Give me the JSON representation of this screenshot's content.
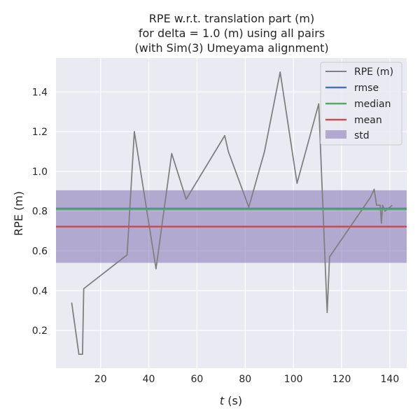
{
  "chart_data": {
    "type": "line",
    "title": [
      "RPE w.r.t. translation part (m)",
      "for delta = 1.0 (m) using all pairs",
      "(with Sim(3) Umeyama alignment)"
    ],
    "xlabel_italic": "t",
    "xlabel_unit": " (s)",
    "ylabel": "RPE (m)",
    "xlim": [
      1.5,
      147
    ],
    "ylim": [
      0.01,
      1.57
    ],
    "x_ticks": [
      20,
      40,
      60,
      80,
      100,
      120,
      140
    ],
    "y_ticks": [
      0.2,
      0.4,
      0.6,
      0.8,
      1.0,
      1.2,
      1.4
    ],
    "y_tick_labels": [
      "0.2",
      "0.4",
      "0.6",
      "0.8",
      "1.0",
      "1.2",
      "1.4"
    ],
    "grid": true,
    "legend_position": "top-right",
    "series": [
      {
        "name": "RPE (m)",
        "color": "#808080",
        "x": [
          8,
          11,
          12.5,
          13,
          31,
          34,
          43,
          49.5,
          55.5,
          71.5,
          73,
          81.5,
          88,
          94.5,
          101.5,
          110.5,
          114,
          115,
          132,
          133.5,
          134.5,
          136,
          136.5,
          137,
          138,
          141
        ],
        "y": [
          0.34,
          0.08,
          0.08,
          0.41,
          0.58,
          1.2,
          0.51,
          1.09,
          0.86,
          1.18,
          1.1,
          0.82,
          1.1,
          1.5,
          0.94,
          1.34,
          0.29,
          0.57,
          0.87,
          0.91,
          0.83,
          0.83,
          0.74,
          0.83,
          0.8,
          0.83
        ]
      }
    ],
    "stats": {
      "rmse": {
        "name": "rmse",
        "value": 0.813,
        "color": "#4c72b0"
      },
      "median": {
        "name": "median",
        "value": 0.81,
        "color": "#55a868"
      },
      "mean": {
        "name": "mean",
        "value": 0.722,
        "color": "#c44e52"
      },
      "std": {
        "name": "std",
        "low": 0.54,
        "high": 0.905,
        "color": "#8172b2"
      }
    },
    "colors": {
      "background": "#eaeaf2",
      "grid": "#ffffff"
    }
  }
}
